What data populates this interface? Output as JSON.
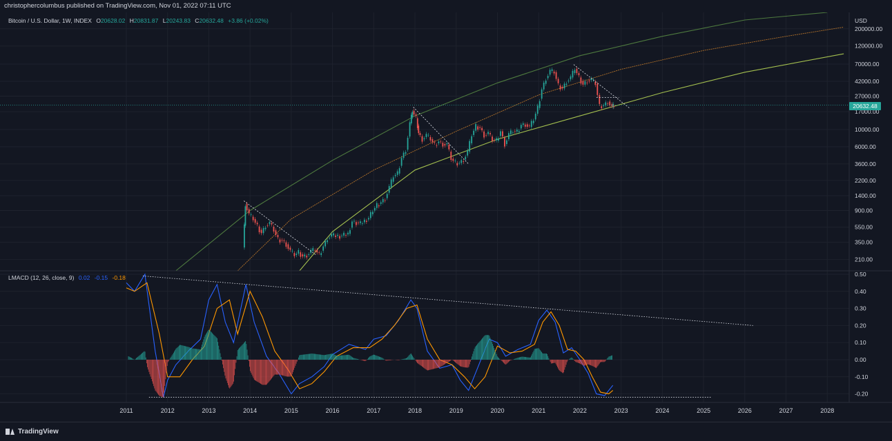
{
  "publisher_line": "christophercolumbus published on TradingView.com, Nov 01, 2022 07:11 UTC",
  "price_header": {
    "symbol": "Bitcoin / U.S. Dollar, 1W, INDEX",
    "open_label": "O",
    "open": "20628.02",
    "high_label": "H",
    "high": "20831.87",
    "low_label": "L",
    "low": "20243.83",
    "close_label": "C",
    "close": "20632.48",
    "change": "+3.86 (+0.02%)"
  },
  "macd_header": {
    "name": "LMACD (12, 26, close, 9)",
    "v1": "0.02",
    "v2": "-0.15",
    "v3": "-0.18"
  },
  "currency": "USD",
  "last_price_tag": "20632.48",
  "footer": {
    "brand": "TradingView"
  },
  "colors": {
    "background": "#131722",
    "grid": "#1e222d",
    "up": "#26a69a",
    "down": "#ef5350",
    "macd_line": "#2962ff",
    "signal_line": "#ff9800",
    "hist_up": "#26a69a",
    "hist_down": "#ef5350",
    "curve_outer": "#4e7a3f",
    "curve_mid": "#b5732a",
    "curve_inner": "#a4c04f"
  },
  "chart_data": [
    {
      "type": "line",
      "title": "Bitcoin / U.S. Dollar, 1W, INDEX",
      "y_scale": "log",
      "ylim": [
        150,
        300000
      ],
      "x_ticks": [
        "2011",
        "2012",
        "2013",
        "2014",
        "2015",
        "2016",
        "2017",
        "2018",
        "2019",
        "2020",
        "2021",
        "2022",
        "2023",
        "2024",
        "2025",
        "2026",
        "2027",
        "2028"
      ],
      "y_ticks": [
        "200000.00",
        "120000.00",
        "70000.00",
        "42000.00",
        "27000.00",
        "17000.00",
        "10000.00",
        "6000.00",
        "3600.00",
        "2200.00",
        "1400.00",
        "900.00",
        "550.00",
        "350.00",
        "210.00"
      ],
      "series": [
        {
          "x": [
            2013.85,
            2013.9,
            2014.0,
            2014.1,
            2014.2,
            2014.3,
            2014.4,
            2014.5,
            2014.6,
            2014.7,
            2014.8,
            2014.9,
            2015.0,
            2015.1,
            2015.2,
            2015.3,
            2015.4,
            2015.5,
            2015.6,
            2015.7,
            2015.8,
            2015.9,
            2016.0,
            2016.2,
            2016.4,
            2016.5,
            2016.7,
            2016.9,
            2017.0,
            2017.1,
            2017.2,
            2017.3,
            2017.4,
            2017.5,
            2017.6,
            2017.7,
            2017.8,
            2017.9,
            2017.95,
            2018.05,
            2018.1,
            2018.2,
            2018.3,
            2018.4,
            2018.5,
            2018.6,
            2018.7,
            2018.8,
            2018.9,
            2019.0,
            2019.1,
            2019.2,
            2019.3,
            2019.4,
            2019.5,
            2019.6,
            2019.7,
            2019.8,
            2019.9,
            2020.0,
            2020.1,
            2020.2,
            2020.3,
            2020.4,
            2020.5,
            2020.6,
            2020.7,
            2020.8,
            2020.9,
            2021.0,
            2021.1,
            2021.2,
            2021.3,
            2021.4,
            2021.5,
            2021.6,
            2021.7,
            2021.8,
            2021.9,
            2022.0,
            2022.1,
            2022.2,
            2022.3,
            2022.4,
            2022.5,
            2022.6,
            2022.7,
            2022.8,
            2022.83
          ],
          "values": [
            300,
            1100,
            800,
            700,
            560,
            460,
            580,
            620,
            500,
            380,
            370,
            330,
            270,
            240,
            260,
            230,
            240,
            270,
            280,
            240,
            310,
            400,
            430,
            420,
            450,
            650,
            610,
            720,
            900,
            1050,
            1150,
            1300,
            1800,
            2500,
            2700,
            4300,
            5500,
            12000,
            17500,
            14000,
            9000,
            7500,
            8500,
            7500,
            6300,
            7000,
            6500,
            6400,
            4200,
            3700,
            3700,
            4100,
            5200,
            8500,
            11000,
            10500,
            8500,
            9000,
            7300,
            7200,
            9500,
            6500,
            8700,
            9500,
            9300,
            11500,
            11700,
            10800,
            13500,
            19000,
            33000,
            46000,
            57000,
            55000,
            37000,
            34000,
            42000,
            47000,
            61000,
            47000,
            38000,
            43000,
            44000,
            39000,
            20000,
            20500,
            23000,
            19500,
            20632
          ]
        }
      ],
      "annotations": [
        {
          "type": "trendline",
          "label": "2013 downtrend",
          "from": [
            2013.85,
            1200
          ],
          "to": [
            2015.6,
            240
          ]
        },
        {
          "type": "trendline",
          "label": "2018 downtrend",
          "from": [
            2017.96,
            19500
          ],
          "to": [
            2019.3,
            3600
          ]
        },
        {
          "type": "trendline",
          "label": "2021 downtrend",
          "from": [
            2021.85,
            69000
          ],
          "to": [
            2023.2,
            19000
          ]
        },
        {
          "type": "trendline",
          "label": "2022 flat",
          "from": [
            2022.4,
            26000
          ],
          "to": [
            2022.95,
            26000
          ]
        },
        {
          "type": "curve",
          "name": "outer band",
          "points": [
            [
              2012.2,
              150
            ],
            [
              2014,
              900
            ],
            [
              2016,
              4000
            ],
            [
              2018,
              15000
            ],
            [
              2020,
              40000
            ],
            [
              2022,
              90000
            ],
            [
              2024,
              160000
            ],
            [
              2026,
              260000
            ],
            [
              2028,
              380000
            ]
          ]
        },
        {
          "type": "curve",
          "name": "middle band",
          "points": [
            [
              2013.7,
              150
            ],
            [
              2015,
              700
            ],
            [
              2017,
              3000
            ],
            [
              2019,
              9500
            ],
            [
              2021,
              28000
            ],
            [
              2023,
              60000
            ],
            [
              2025,
              105000
            ],
            [
              2027,
              160000
            ],
            [
              2028.4,
              210000
            ]
          ]
        },
        {
          "type": "curve",
          "name": "lower band",
          "points": [
            [
              2015.2,
              150
            ],
            [
              2016,
              480
            ],
            [
              2018,
              3000
            ],
            [
              2020,
              7500
            ],
            [
              2022,
              15000
            ],
            [
              2024,
              30000
            ],
            [
              2026,
              55000
            ],
            [
              2028.4,
              95000
            ]
          ]
        }
      ]
    },
    {
      "type": "line",
      "title": "LMACD (12, 26, close, 9)",
      "ylim": [
        -0.25,
        0.52
      ],
      "y_ticks": [
        "0.50",
        "0.40",
        "0.30",
        "0.20",
        "0.10",
        "0.00",
        "-0.10",
        "-0.20"
      ],
      "series": [
        {
          "name": "MACD",
          "x": [
            2011.0,
            2011.2,
            2011.45,
            2011.7,
            2011.9,
            2012.0,
            2012.2,
            2012.5,
            2012.8,
            2013.0,
            2013.2,
            2013.4,
            2013.6,
            2013.9,
            2014.1,
            2014.4,
            2014.7,
            2015.0,
            2015.2,
            2015.5,
            2015.8,
            2016.0,
            2016.4,
            2016.8,
            2017.0,
            2017.3,
            2017.6,
            2017.9,
            2018.05,
            2018.3,
            2018.6,
            2018.9,
            2019.1,
            2019.3,
            2019.5,
            2019.8,
            2020.0,
            2020.2,
            2020.5,
            2020.8,
            2021.0,
            2021.2,
            2021.4,
            2021.6,
            2021.8,
            2022.0,
            2022.2,
            2022.4,
            2022.6,
            2022.8
          ],
          "values": [
            0.45,
            0.4,
            0.5,
            0.05,
            -0.22,
            -0.12,
            -0.03,
            0.05,
            0.12,
            0.35,
            0.44,
            0.22,
            0.1,
            0.44,
            0.22,
            0.02,
            -0.08,
            -0.2,
            -0.14,
            -0.1,
            -0.04,
            0.03,
            0.09,
            0.06,
            0.12,
            0.14,
            0.23,
            0.35,
            0.3,
            0.05,
            -0.05,
            -0.03,
            -0.12,
            -0.18,
            -0.06,
            0.12,
            0.1,
            0.02,
            0.06,
            0.09,
            0.23,
            0.29,
            0.22,
            0.04,
            0.07,
            0.0,
            -0.08,
            -0.2,
            -0.21,
            -0.15
          ]
        },
        {
          "name": "Signal",
          "x": [
            2011.0,
            2011.2,
            2011.5,
            2011.8,
            2012.0,
            2012.3,
            2012.6,
            2012.9,
            2013.2,
            2013.5,
            2013.7,
            2014.0,
            2014.3,
            2014.6,
            2014.9,
            2015.2,
            2015.5,
            2015.8,
            2016.1,
            2016.5,
            2016.9,
            2017.2,
            2017.5,
            2017.8,
            2018.05,
            2018.3,
            2018.6,
            2018.9,
            2019.2,
            2019.45,
            2019.7,
            2020.0,
            2020.3,
            2020.6,
            2020.9,
            2021.1,
            2021.3,
            2021.5,
            2021.7,
            2021.9,
            2022.1,
            2022.3,
            2022.5,
            2022.7,
            2022.8
          ],
          "values": [
            0.42,
            0.4,
            0.45,
            0.15,
            -0.1,
            -0.1,
            0.0,
            0.08,
            0.3,
            0.35,
            0.15,
            0.4,
            0.25,
            0.05,
            -0.05,
            -0.17,
            -0.14,
            -0.07,
            0.02,
            0.07,
            0.07,
            0.12,
            0.2,
            0.3,
            0.32,
            0.12,
            0.0,
            -0.03,
            -0.1,
            -0.17,
            -0.1,
            0.08,
            0.04,
            0.05,
            0.09,
            0.22,
            0.28,
            0.2,
            0.06,
            0.05,
            0.0,
            -0.1,
            -0.19,
            -0.2,
            -0.18
          ]
        }
      ],
      "annotations": [
        {
          "type": "trendline",
          "label": "MACD top trendline",
          "from": [
            2011.4,
            0.49
          ],
          "to": [
            2026.2,
            0.2
          ]
        },
        {
          "type": "trendline",
          "label": "MACD bottom line",
          "from": [
            2011.55,
            -0.22
          ],
          "to": [
            2025.2,
            -0.22
          ]
        }
      ]
    }
  ]
}
